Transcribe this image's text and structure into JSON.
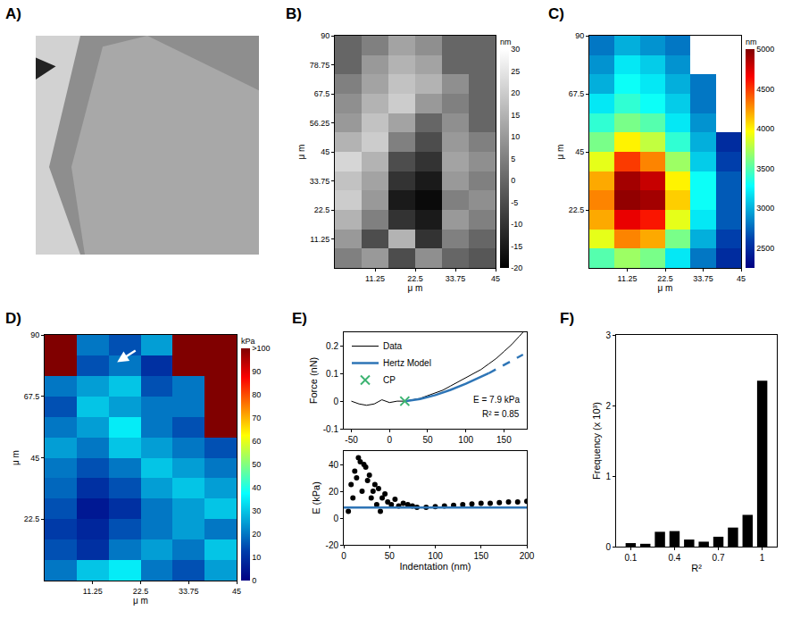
{
  "chart_data": [
    {
      "type": "image",
      "label": "A)",
      "tick_labels": false
    },
    {
      "type": "heatmap",
      "label": "B)",
      "x": [
        3.75,
        11.25,
        18.75,
        26.25,
        33.75,
        41.25
      ],
      "y": [
        3.75,
        11.25,
        18.75,
        26.25,
        33.75,
        41.25,
        48.75,
        56.25,
        63.75,
        71.25,
        78.75,
        86.25
      ],
      "z": [
        [
          5,
          10,
          -5,
          8,
          0,
          -3
        ],
        [
          10,
          -5,
          15,
          -10,
          5,
          0
        ],
        [
          15,
          5,
          -10,
          -15,
          10,
          5
        ],
        [
          20,
          10,
          -15,
          -18,
          5,
          8
        ],
        [
          18,
          12,
          -10,
          -15,
          10,
          5
        ],
        [
          22,
          15,
          -5,
          -10,
          12,
          8
        ],
        [
          15,
          20,
          5,
          -5,
          10,
          5
        ],
        [
          10,
          18,
          12,
          0,
          8,
          0
        ],
        [
          8,
          15,
          20,
          10,
          5,
          0
        ],
        [
          5,
          12,
          18,
          15,
          8,
          0
        ],
        [
          0,
          10,
          15,
          12,
          0,
          0
        ],
        [
          0,
          5,
          12,
          8,
          0,
          0
        ]
      ],
      "color": "gray",
      "zlim": [
        -20,
        30
      ],
      "zticks": [
        -20,
        -15,
        -10,
        -5,
        0,
        5,
        10,
        15,
        20,
        25,
        30
      ],
      "colorbar_title": "nm",
      "xlim": [
        0,
        45
      ],
      "ylim": [
        0,
        90
      ],
      "xticks": [
        11.25,
        22.5,
        33.75,
        45
      ],
      "yticks": [
        11.25,
        22.5,
        33.75,
        45,
        56.25,
        67.5,
        78.75,
        90
      ],
      "x_label": "μ m",
      "y_label": "μ m"
    },
    {
      "type": "heatmap",
      "label": "C)",
      "x": [
        3.75,
        11.25,
        18.75,
        26.25,
        33.75,
        41.25
      ],
      "y": [
        3.75,
        11.25,
        18.75,
        26.25,
        33.75,
        41.25,
        48.75,
        56.25,
        63.75,
        71.25,
        78.75,
        86.25
      ],
      "z": [
        [
          3500,
          3700,
          3600,
          3200,
          2800,
          2500
        ],
        [
          3900,
          4300,
          4200,
          3600,
          3000,
          2600
        ],
        [
          4200,
          4700,
          4600,
          3900,
          3200,
          2700
        ],
        [
          4300,
          4950,
          4900,
          4100,
          3300,
          2700
        ],
        [
          4200,
          4900,
          4800,
          4000,
          3300,
          2700
        ],
        [
          3900,
          4500,
          4300,
          3700,
          3100,
          2600
        ],
        [
          3600,
          4000,
          3800,
          3400,
          3000,
          2500
        ],
        [
          3400,
          3600,
          3500,
          3200,
          2900,
          null
        ],
        [
          3200,
          3400,
          3300,
          3100,
          2800,
          null
        ],
        [
          3000,
          3300,
          3200,
          3000,
          2800,
          null
        ],
        [
          2900,
          3200,
          3100,
          2900,
          null,
          null
        ],
        [
          2800,
          3000,
          2900,
          2800,
          null,
          null
        ]
      ],
      "color": "jet",
      "zlim": [
        2250,
        5000
      ],
      "zticks": [
        2500,
        3000,
        3500,
        4000,
        4500,
        5000
      ],
      "colorbar_title": "nm",
      "xlim": [
        0,
        45
      ],
      "ylim": [
        0,
        90
      ],
      "xticks": [
        11.25,
        22.5,
        33.75,
        45
      ],
      "yticks": [
        22.5,
        45,
        67.5,
        90
      ],
      "x_label": "μ m",
      "y_label": "μ m"
    },
    {
      "type": "heatmap",
      "label": "D)",
      "x": [
        3.75,
        11.25,
        18.75,
        26.25,
        33.75,
        41.25
      ],
      "y": [
        3.75,
        11.25,
        18.75,
        26.25,
        33.75,
        41.25,
        48.75,
        56.25,
        63.75,
        71.25,
        78.75,
        86.25
      ],
      "z": [
        [
          20,
          30,
          35,
          20,
          15,
          25
        ],
        [
          15,
          10,
          20,
          25,
          20,
          30
        ],
        [
          12,
          8,
          15,
          20,
          25,
          20
        ],
        [
          15,
          5,
          10,
          20,
          25,
          30
        ],
        [
          18,
          10,
          15,
          25,
          30,
          25
        ],
        [
          20,
          15,
          20,
          30,
          25,
          20
        ],
        [
          25,
          20,
          30,
          25,
          20,
          15
        ],
        [
          20,
          25,
          35,
          20,
          15,
          120
        ],
        [
          15,
          30,
          25,
          20,
          20,
          120
        ],
        [
          20,
          25,
          30,
          15,
          20,
          120
        ],
        [
          120,
          15,
          20,
          10,
          120,
          120
        ],
        [
          120,
          20,
          15,
          25,
          120,
          120
        ]
      ],
      "color": "jet",
      "zlim": [
        0,
        100
      ],
      "zticks": [
        0,
        10,
        20,
        30,
        40,
        50,
        60,
        70,
        80,
        90,
        {
          "value": 100,
          "label": ">100"
        }
      ],
      "colorbar_title": "kPa",
      "xlim": [
        0,
        45
      ],
      "ylim": [
        0,
        90
      ],
      "xticks": [
        11.25,
        22.5,
        33.75,
        45
      ],
      "yticks": [
        22.5,
        45,
        67.5,
        90
      ],
      "x_label": "μ m",
      "y_label": "μ m"
    },
    {
      "type": "line",
      "label": "E)",
      "legend": "top-left",
      "xlim": [
        -60,
        180
      ],
      "xticks": [
        -50,
        0,
        50,
        100,
        150
      ],
      "ylim": [
        -0.1,
        0.25
      ],
      "yticks": [
        -0.1,
        0,
        0.1,
        0.2
      ],
      "y_label": "Force (nN)",
      "annotations": [
        "E = 7.9 kPa",
        "R² = 0.85"
      ],
      "series": [
        {
          "name": "Data",
          "color": "#000000",
          "line_style": "solid",
          "x": [
            -50,
            -40,
            -30,
            -20,
            -10,
            0,
            10,
            20,
            30,
            40,
            50,
            60,
            70,
            80,
            90,
            100,
            110,
            120,
            130,
            140,
            150,
            160,
            170,
            175
          ],
          "values": [
            0,
            -0.01,
            -0.015,
            -0.01,
            0.005,
            -0.005,
            0,
            0,
            0.005,
            0.01,
            0.02,
            0.03,
            0.04,
            0.055,
            0.07,
            0.085,
            0.1,
            0.115,
            0.135,
            0.155,
            0.18,
            0.205,
            0.235,
            0.25
          ]
        },
        {
          "name": "Hertz Model",
          "color": "#2e75b6",
          "line_style": "solid",
          "x": [
            20,
            40,
            60,
            80,
            100,
            120,
            130
          ],
          "values": [
            0,
            0.008,
            0.022,
            0.041,
            0.063,
            0.088,
            0.101
          ]
        },
        {
          "name": "Hertz Model",
          "color": "#2e75b6",
          "line_style": "dash",
          "x": [
            130,
            140,
            150,
            160,
            170,
            175
          ],
          "values": [
            0.101,
            0.116,
            0.13,
            0.146,
            0.161,
            0.169
          ]
        },
        {
          "name": "CP",
          "color": "#3cb371",
          "type": "scatter",
          "marker": "x",
          "x": [
            20
          ],
          "values": [
            0
          ]
        }
      ]
    },
    {
      "type": "scatter",
      "xlim": [
        0,
        200
      ],
      "xticks": [
        0,
        50,
        100,
        150,
        200
      ],
      "ylim": [
        -20,
        50
      ],
      "yticks": [
        -20,
        0,
        20,
        40
      ],
      "x_label": "Indentation (nm)",
      "y_label": "E (kPa)",
      "series": [
        {
          "color": "#000000",
          "type": "scatter",
          "marker": "circle",
          "x": [
            5,
            8,
            10,
            12,
            14,
            16,
            18,
            20,
            22,
            24,
            26,
            28,
            30,
            32,
            34,
            36,
            38,
            40,
            42,
            45,
            48,
            52,
            56,
            60,
            65,
            70,
            75,
            80,
            90,
            100,
            110,
            120,
            130,
            140,
            150,
            160,
            170,
            180,
            190,
            200
          ],
          "values": [
            5,
            25,
            15,
            35,
            30,
            45,
            42,
            20,
            40,
            38,
            28,
            32,
            15,
            20,
            25,
            10,
            22,
            5,
            15,
            18,
            12,
            10,
            14,
            9,
            11,
            10,
            9,
            8,
            8,
            8.5,
            9,
            9.5,
            10,
            10.5,
            11,
            11,
            11.5,
            12,
            12,
            12.5
          ]
        },
        {
          "color": "#2e75b6",
          "type": "line",
          "line_style": "solid",
          "x": [
            0,
            200
          ],
          "values": [
            7.9,
            7.9
          ]
        }
      ]
    },
    {
      "type": "histogram",
      "label": "F)",
      "color": "#000000",
      "bins": [
        0.05,
        0.15,
        0.25,
        0.35,
        0.45,
        0.55,
        0.65,
        0.75,
        0.85,
        0.95,
        1.05
      ],
      "counts": [
        0.05,
        0.04,
        0.21,
        0.22,
        0.1,
        0.07,
        0.14,
        0.27,
        0.45,
        2.35
      ],
      "xlim": [
        0,
        1.1
      ],
      "xticks": [
        0.1,
        0.4,
        0.7,
        1
      ],
      "ylim": [
        0,
        3
      ],
      "yticks": [
        0,
        1,
        2,
        3
      ],
      "x_label": "R²",
      "y_label": "Frequency (x 10³)"
    }
  ]
}
